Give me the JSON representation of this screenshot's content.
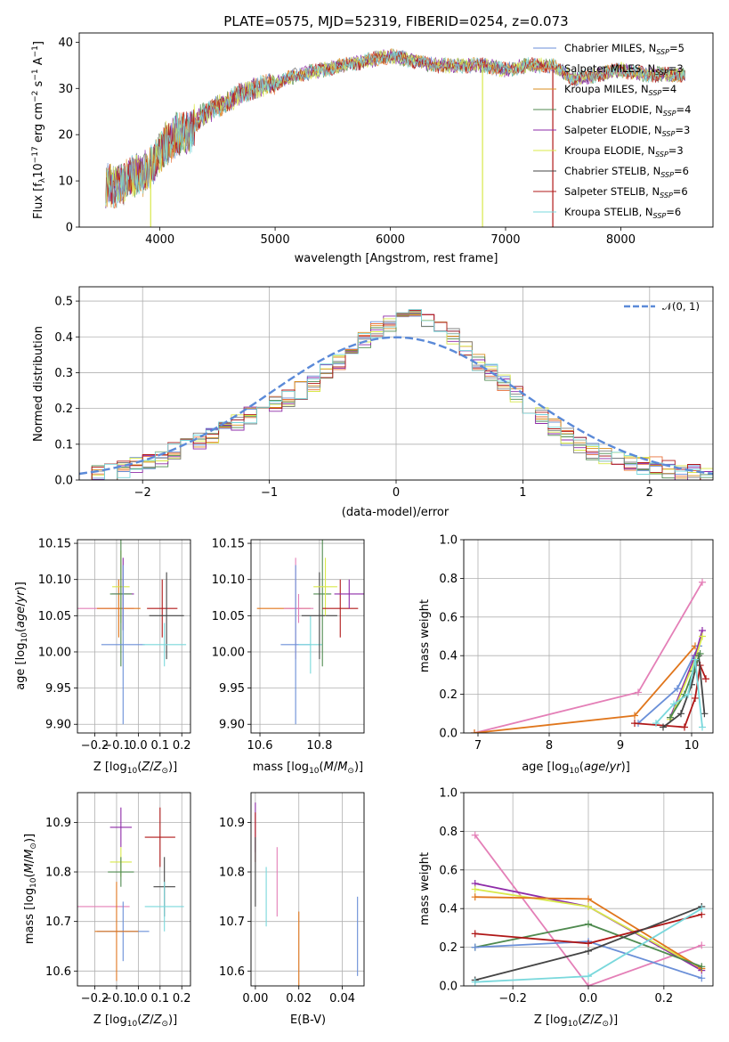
{
  "colors": {
    "Chabrier MILES": "#6a8fd8",
    "Salpeter MILES": "#e8703a",
    "Kroupa MILES": "#d98d1f",
    "Chabrier ELODIE": "#4f8a4f",
    "Salpeter ELODIE": "#8e2ba8",
    "Kroupa ELODIE": "#d8e84a",
    "Chabrier STELIB": "#444444",
    "Salpeter STELIB": "#b01818",
    "Kroupa STELIB": "#7ad8dc",
    "gaussian": "#5b8ad8",
    "extra_pink": "#e47fb7",
    "extra_orange": "#e0761c",
    "extra_teal": "#2e7a7a"
  },
  "chart_data": [
    {
      "id": "spectrum",
      "type": "line",
      "title": "PLATE=0575, MJD=52319, FIBERID=0254, z=0.073",
      "xlabel": "wavelength [Angstrom, rest frame]",
      "ylabel": "Flux [fλ10⁻¹⁷ erg cm⁻² s⁻¹ A⁻¹]",
      "xlim": [
        3300,
        8800
      ],
      "ylim": [
        0,
        42
      ],
      "xticks": [
        4000,
        5000,
        6000,
        7000,
        8000
      ],
      "yticks": [
        0,
        10,
        20,
        30,
        40
      ],
      "grid": false,
      "legend": "top-right",
      "legend_entries": [
        "Chabrier MILES, N_SSP=5",
        "Salpeter MILES, N_SSP=3",
        "Kroupa MILES, N_SSP=4",
        "Chabrier ELODIE, N_SSP=4",
        "Salpeter ELODIE, N_SSP=3",
        "Kroupa ELODIE, N_SSP=3",
        "Chabrier STELIB, N_SSP=6",
        "Salpeter STELIB, N_SSP=6",
        "Kroupa STELIB, N_SSP=6"
      ],
      "legend_parts": [
        [
          "Chabrier MILES, N",
          "SSP",
          "=5"
        ],
        [
          "Salpeter MILES, N",
          "SSP",
          "=3"
        ],
        [
          "Kroupa MILES, N",
          "SSP",
          "=4"
        ],
        [
          "Chabrier ELODIE, N",
          "SSP",
          "=4"
        ],
        [
          "Salpeter ELODIE, N",
          "SSP",
          "=3"
        ],
        [
          "Kroupa ELODIE, N",
          "SSP",
          "=3"
        ],
        [
          "Chabrier STELIB, N",
          "SSP",
          "=6"
        ],
        [
          "Salpeter STELIB, N",
          "SSP",
          "=6"
        ],
        [
          "Kroupa STELIB, N",
          "SSP",
          "=6"
        ]
      ],
      "data_continuum": {
        "x": [
          3550,
          3650,
          3750,
          3850,
          3950,
          4050,
          4150,
          4250,
          4350,
          4500,
          4650,
          4800,
          5000,
          5200,
          5400,
          5600,
          5800,
          6000,
          6200,
          6400,
          6600,
          6800,
          7000,
          7200,
          7400,
          7600,
          7800,
          8000,
          8200,
          8400,
          8550
        ],
        "y": [
          9,
          9,
          11,
          11,
          14,
          18,
          20,
          20,
          24,
          26,
          28,
          30,
          31,
          33,
          34,
          35,
          36,
          37,
          36,
          35,
          35,
          35,
          34,
          35,
          35,
          32,
          33,
          34,
          33,
          33,
          33
        ]
      },
      "dropouts": [
        {
          "x": 3920,
          "y_low": 0
        },
        {
          "x": 6800,
          "y_low": 0
        },
        {
          "x": 7410,
          "y_low": 0
        }
      ]
    },
    {
      "id": "residuals",
      "type": "step",
      "xlabel": "(data-model)/error",
      "ylabel": "Normed distribution",
      "xlim": [
        -2.5,
        2.5
      ],
      "ylim": [
        0,
        0.54
      ],
      "xticks": [
        -2,
        -1,
        0,
        1,
        2
      ],
      "yticks": [
        0.0,
        0.1,
        0.2,
        0.3,
        0.4,
        0.5
      ],
      "grid": true,
      "legend": "top-right",
      "legend_label": "𝒩(0, 1)",
      "gaussian": {
        "mu": 0,
        "sigma": 1
      },
      "bin_width": 0.1,
      "bin_start": -2.5,
      "histogram_shape": [
        0.01,
        0.02,
        0.02,
        0.03,
        0.04,
        0.05,
        0.06,
        0.08,
        0.1,
        0.11,
        0.12,
        0.14,
        0.16,
        0.18,
        0.2,
        0.21,
        0.23,
        0.25,
        0.27,
        0.3,
        0.33,
        0.36,
        0.39,
        0.42,
        0.44,
        0.46,
        0.46,
        0.45,
        0.43,
        0.4,
        0.37,
        0.33,
        0.3,
        0.27,
        0.24,
        0.21,
        0.18,
        0.15,
        0.12,
        0.1,
        0.08,
        0.07,
        0.06,
        0.05,
        0.04,
        0.04,
        0.03,
        0.02,
        0.02,
        0.01
      ]
    },
    {
      "id": "age_vs_Z",
      "type": "errorbar",
      "xlabel": "Z [log₁₀(Z/Z⊙)]",
      "ylabel": "age  [log₁₀(age/yr)]",
      "xlim": [
        -0.28,
        0.24
      ],
      "ylim": [
        9.888,
        10.155
      ],
      "xticks": [
        -0.2,
        -0.1,
        0.0,
        0.1,
        0.2
      ],
      "yticks": [
        9.9,
        9.95,
        10.0,
        10.05,
        10.1,
        10.15
      ],
      "grid": true,
      "points": [
        {
          "x": -0.15,
          "y": 10.06,
          "xerr": 0.13,
          "yerr": 0.0,
          "color": "#e47fb7"
        },
        {
          "x": -0.09,
          "y": 10.06,
          "xerr": 0.1,
          "yerr": 0.04,
          "color": "#e0761c"
        },
        {
          "x": -0.07,
          "y": 10.08,
          "xerr": 0.05,
          "yerr": 0.05,
          "color": "#8e2ba8"
        },
        {
          "x": -0.08,
          "y": 10.09,
          "xerr": 0.04,
          "yerr": 0.05,
          "color": "#d8e84a"
        },
        {
          "x": -0.08,
          "y": 10.08,
          "xerr": 0.05,
          "yerr": 0.1,
          "color": "#4f8a4f"
        },
        {
          "x": -0.07,
          "y": 10.01,
          "xerr": 0.1,
          "yerr": 0.11,
          "color": "#6a8fd8"
        },
        {
          "x": 0.11,
          "y": 10.06,
          "xerr": 0.07,
          "yerr": 0.04,
          "color": "#b01818"
        },
        {
          "x": 0.13,
          "y": 10.05,
          "xerr": 0.08,
          "yerr": 0.06,
          "color": "#444444"
        },
        {
          "x": 0.12,
          "y": 10.01,
          "xerr": 0.1,
          "yerr": 0.03,
          "color": "#7ad8dc"
        }
      ]
    },
    {
      "id": "age_vs_mass",
      "type": "errorbar",
      "xlabel": "mass [log₁₀(M/M⊙)]",
      "ylabel": "",
      "xlim": [
        10.57,
        10.95
      ],
      "ylim": [
        9.888,
        10.155
      ],
      "xticks": [
        10.6,
        10.8
      ],
      "yticks": [
        9.9,
        9.95,
        10.0,
        10.05,
        10.1,
        10.15
      ],
      "grid": true,
      "points": [
        {
          "x": 10.68,
          "y": 10.06,
          "xerr": 0.09,
          "yerr": 0.0,
          "color": "#e0761c"
        },
        {
          "x": 10.72,
          "y": 10.06,
          "xerr": 0.02,
          "yerr": 0.07,
          "color": "#e47fb7"
        },
        {
          "x": 10.73,
          "y": 10.06,
          "xerr": 0.05,
          "yerr": 0.02,
          "color": "#e47fb7"
        },
        {
          "x": 10.72,
          "y": 10.01,
          "xerr": 0.05,
          "yerr": 0.11,
          "color": "#6a8fd8"
        },
        {
          "x": 10.77,
          "y": 10.01,
          "xerr": 0.04,
          "yerr": 0.04,
          "color": "#7ad8dc"
        },
        {
          "x": 10.81,
          "y": 10.08,
          "xerr": 0.03,
          "yerr": 0.1,
          "color": "#4f8a4f"
        },
        {
          "x": 10.8,
          "y": 10.05,
          "xerr": 0.06,
          "yerr": 0.06,
          "color": "#444444"
        },
        {
          "x": 10.82,
          "y": 10.09,
          "xerr": 0.04,
          "yerr": 0.04,
          "color": "#d8e84a"
        },
        {
          "x": 10.87,
          "y": 10.06,
          "xerr": 0.06,
          "yerr": 0.04,
          "color": "#b01818"
        },
        {
          "x": 10.9,
          "y": 10.08,
          "xerr": 0.05,
          "yerr": 0.02,
          "color": "#8e2ba8"
        }
      ]
    },
    {
      "id": "massweight_vs_age",
      "type": "line",
      "xlabel": "age  [log₁₀(age/yr)]",
      "ylabel": "mass weight",
      "xlim": [
        6.8,
        10.3
      ],
      "ylim": [
        0,
        1
      ],
      "xticks": [
        7,
        8,
        9,
        10
      ],
      "yticks": [
        0.0,
        0.2,
        0.4,
        0.6,
        0.8,
        1.0
      ],
      "grid": true,
      "series": [
        {
          "color": "#e47fb7",
          "x": [
            6.95,
            9.25,
            10.15
          ],
          "y": [
            0.0,
            0.21,
            0.78
          ]
        },
        {
          "color": "#e0761c",
          "x": [
            6.95,
            9.2,
            10.05
          ],
          "y": [
            0.0,
            0.09,
            0.45
          ]
        },
        {
          "color": "#6a8fd8",
          "x": [
            9.25,
            9.8,
            10.1
          ],
          "y": [
            0.05,
            0.23,
            0.45
          ]
        },
        {
          "color": "#8e2ba8",
          "x": [
            9.7,
            10.05,
            10.15
          ],
          "y": [
            0.08,
            0.4,
            0.53
          ]
        },
        {
          "color": "#d8e84a",
          "x": [
            9.7,
            10.05,
            10.15
          ],
          "y": [
            0.07,
            0.38,
            0.5
          ]
        },
        {
          "color": "#b01818",
          "x": [
            9.2,
            9.9,
            10.05,
            10.12,
            10.2
          ],
          "y": [
            0.05,
            0.03,
            0.18,
            0.35,
            0.28
          ]
        },
        {
          "color": "#444444",
          "x": [
            9.6,
            9.85,
            10.0,
            10.1,
            10.18
          ],
          "y": [
            0.03,
            0.1,
            0.25,
            0.4,
            0.1
          ]
        },
        {
          "color": "#4f8a4f",
          "x": [
            9.7,
            9.9,
            10.02,
            10.12
          ],
          "y": [
            0.08,
            0.2,
            0.32,
            0.41
          ]
        },
        {
          "color": "#7ad8dc",
          "x": [
            9.5,
            9.75,
            9.95,
            10.05,
            10.15
          ],
          "y": [
            0.05,
            0.15,
            0.2,
            0.38,
            0.03
          ]
        }
      ]
    },
    {
      "id": "mass_vs_Z",
      "type": "errorbar",
      "xlabel": "Z [log₁₀(Z/Z⊙)]",
      "ylabel": "mass [log₁₀(M/M⊙)]",
      "xlim": [
        -0.28,
        0.24
      ],
      "ylim": [
        10.57,
        10.96
      ],
      "xticks": [
        -0.2,
        -0.1,
        0.0,
        0.1,
        0.2
      ],
      "yticks": [
        10.6,
        10.7,
        10.8,
        10.9
      ],
      "grid": true,
      "points": [
        {
          "x": -0.08,
          "y": 10.89,
          "xerr": 0.05,
          "yerr": 0.04,
          "color": "#8e2ba8"
        },
        {
          "x": 0.1,
          "y": 10.87,
          "xerr": 0.07,
          "yerr": 0.06,
          "color": "#b01818"
        },
        {
          "x": -0.08,
          "y": 10.82,
          "xerr": 0.05,
          "yerr": 0.03,
          "color": "#d8e84a"
        },
        {
          "x": -0.08,
          "y": 10.8,
          "xerr": 0.06,
          "yerr": 0.03,
          "color": "#4f8a4f"
        },
        {
          "x": 0.12,
          "y": 10.77,
          "xerr": 0.05,
          "yerr": 0.06,
          "color": "#444444"
        },
        {
          "x": -0.16,
          "y": 10.73,
          "xerr": 0.12,
          "yerr": 0.0,
          "color": "#e47fb7"
        },
        {
          "x": 0.12,
          "y": 10.73,
          "xerr": 0.09,
          "yerr": 0.05,
          "color": "#7ad8dc"
        },
        {
          "x": -0.07,
          "y": 10.68,
          "xerr": 0.12,
          "yerr": 0.06,
          "color": "#6a8fd8"
        },
        {
          "x": -0.1,
          "y": 10.68,
          "xerr": 0.1,
          "yerr": 0.1,
          "color": "#e0761c"
        }
      ]
    },
    {
      "id": "mass_vs_EBV",
      "type": "errorbar",
      "xlabel": "E(B-V)",
      "ylabel": "",
      "xlim": [
        -0.002,
        0.05
      ],
      "ylim": [
        10.57,
        10.96
      ],
      "xticks": [
        0.0,
        0.02,
        0.04
      ],
      "yticks": [
        10.6,
        10.7,
        10.8,
        10.9
      ],
      "grid": true,
      "points": [
        {
          "x": 0.0,
          "y": 10.89,
          "xerr": 0.0,
          "yerr": 0.05,
          "color": "#8e2ba8"
        },
        {
          "x": 0.0,
          "y": 10.87,
          "xerr": 0.0,
          "yerr": 0.05,
          "color": "#b01818"
        },
        {
          "x": 0.0,
          "y": 10.8,
          "xerr": 0.0,
          "yerr": 0.07,
          "color": "#444444"
        },
        {
          "x": 0.005,
          "y": 10.75,
          "xerr": 0.0,
          "yerr": 0.06,
          "color": "#7ad8dc"
        },
        {
          "x": 0.01,
          "y": 10.78,
          "xerr": 0.0,
          "yerr": 0.07,
          "color": "#e47fb7"
        },
        {
          "x": 0.02,
          "y": 10.63,
          "xerr": 0.0,
          "yerr": 0.09,
          "color": "#e0761c"
        },
        {
          "x": 0.047,
          "y": 10.67,
          "xerr": 0.0,
          "yerr": 0.08,
          "color": "#6a8fd8"
        }
      ]
    },
    {
      "id": "massweight_vs_Z",
      "type": "line",
      "xlabel": "Z [log₁₀(Z/Z⊙)]",
      "ylabel": "mass weight",
      "xlim": [
        -0.33,
        0.33
      ],
      "ylim": [
        0,
        1
      ],
      "xticks": [
        -0.2,
        0.0,
        0.2
      ],
      "yticks": [
        0.0,
        0.2,
        0.4,
        0.6,
        0.8,
        1.0
      ],
      "grid": true,
      "series": [
        {
          "color": "#e47fb7",
          "x": [
            -0.3,
            0.0,
            0.3
          ],
          "y": [
            0.78,
            0.0,
            0.21
          ]
        },
        {
          "color": "#8e2ba8",
          "x": [
            -0.3,
            0.0,
            0.3
          ],
          "y": [
            0.53,
            0.41,
            0.08
          ]
        },
        {
          "color": "#d8e84a",
          "x": [
            -0.3,
            0.0,
            0.3
          ],
          "y": [
            0.5,
            0.41,
            0.09
          ]
        },
        {
          "color": "#e0761c",
          "x": [
            -0.3,
            0.0,
            0.3
          ],
          "y": [
            0.46,
            0.45,
            0.09
          ]
        },
        {
          "color": "#4f8a4f",
          "x": [
            -0.3,
            0.0,
            0.3
          ],
          "y": [
            0.2,
            0.32,
            0.1
          ]
        },
        {
          "color": "#6a8fd8",
          "x": [
            -0.3,
            0.0,
            0.3
          ],
          "y": [
            0.2,
            0.23,
            0.04
          ]
        },
        {
          "color": "#b01818",
          "x": [
            -0.3,
            0.0,
            0.3
          ],
          "y": [
            0.27,
            0.22,
            0.37
          ]
        },
        {
          "color": "#444444",
          "x": [
            -0.3,
            0.0,
            0.3
          ],
          "y": [
            0.03,
            0.18,
            0.41
          ]
        },
        {
          "color": "#7ad8dc",
          "x": [
            -0.3,
            0.0,
            0.3
          ],
          "y": [
            0.02,
            0.05,
            0.4
          ]
        }
      ]
    }
  ]
}
